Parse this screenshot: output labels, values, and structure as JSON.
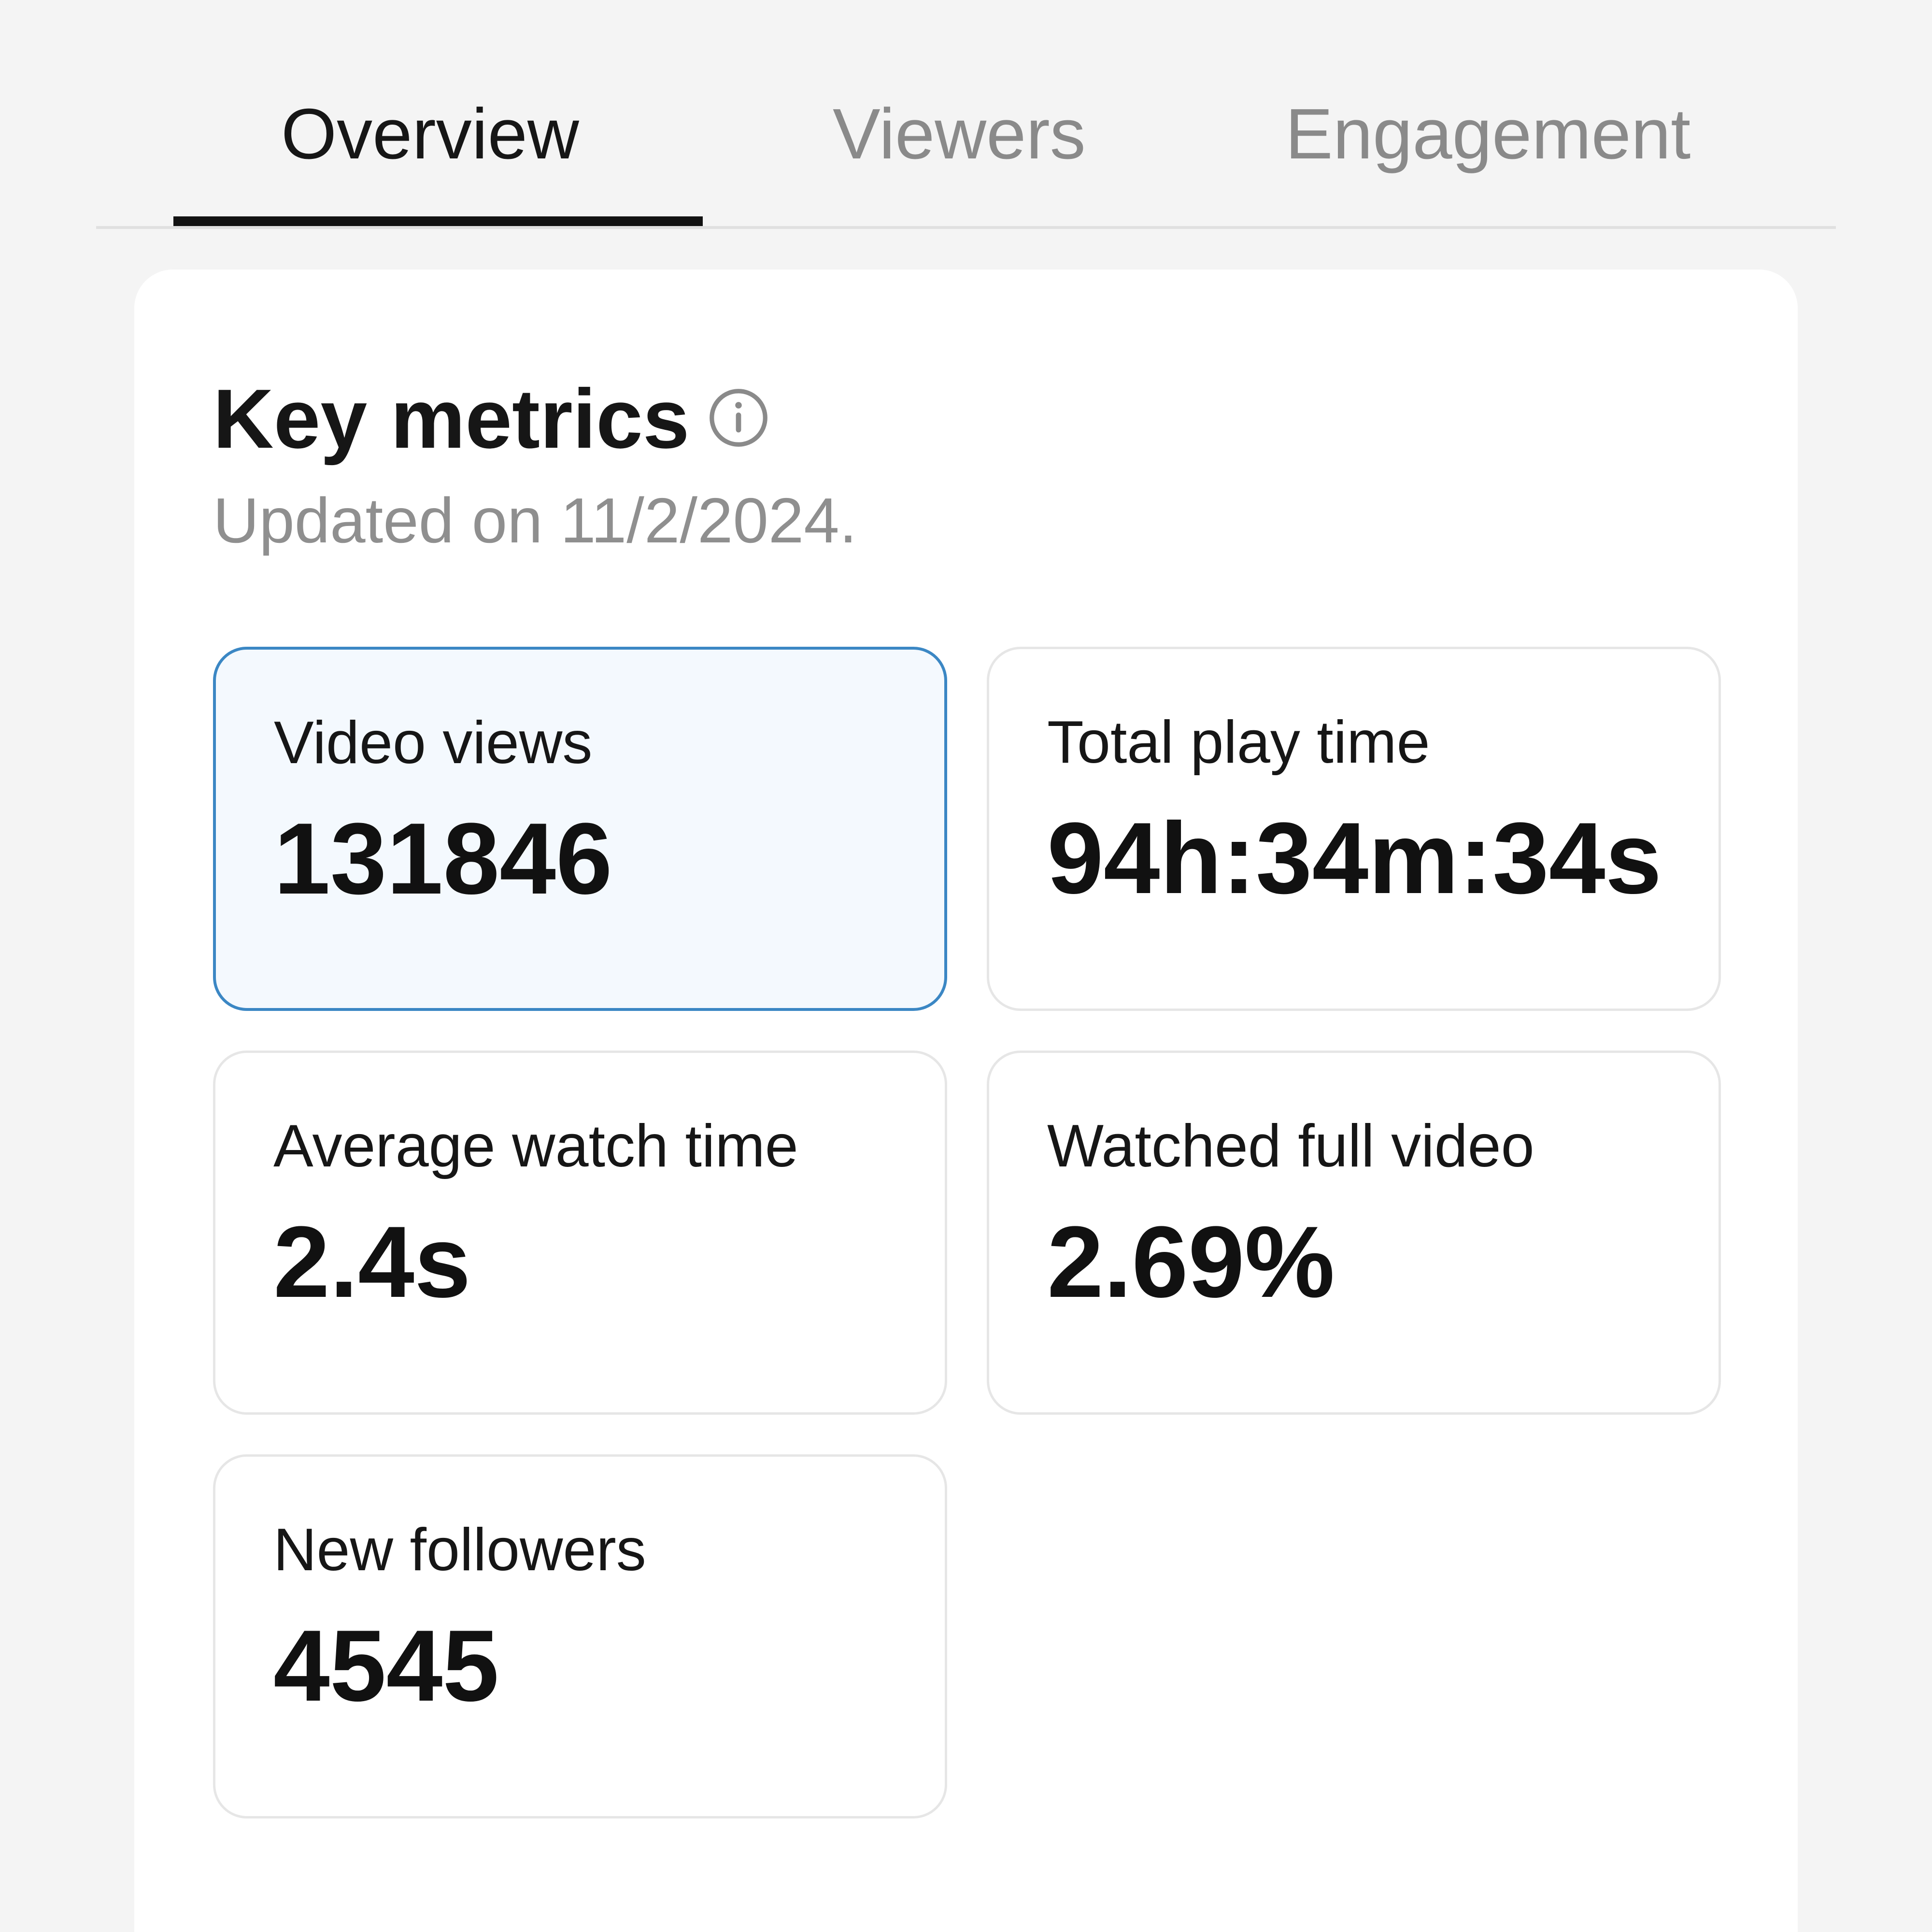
{
  "tabs": [
    {
      "label": "Overview",
      "active": true
    },
    {
      "label": "Viewers",
      "active": false
    },
    {
      "label": "Engagement",
      "active": false
    }
  ],
  "key_metrics": {
    "title": "Key metrics",
    "info_icon": "info-circle-icon",
    "updated": "Updated on 11/2/2024.",
    "cards": [
      {
        "label": "Video views",
        "value": "131846",
        "selected": true
      },
      {
        "label": "Total play time",
        "value": "94h:34m:34s",
        "selected": false
      },
      {
        "label": "Average watch time",
        "value": "2.4s",
        "selected": false
      },
      {
        "label": "Watched full video",
        "value": "2.69%",
        "selected": false
      },
      {
        "label": "New followers",
        "value": "4545",
        "selected": false
      }
    ]
  },
  "colors": {
    "background": "#f4f4f4",
    "panel": "#ffffff",
    "active_tab": "#161616",
    "inactive_tab": "#8a8a8a",
    "selected_card_border": "#3b87c4",
    "selected_card_fill": "#f4f9fe"
  }
}
